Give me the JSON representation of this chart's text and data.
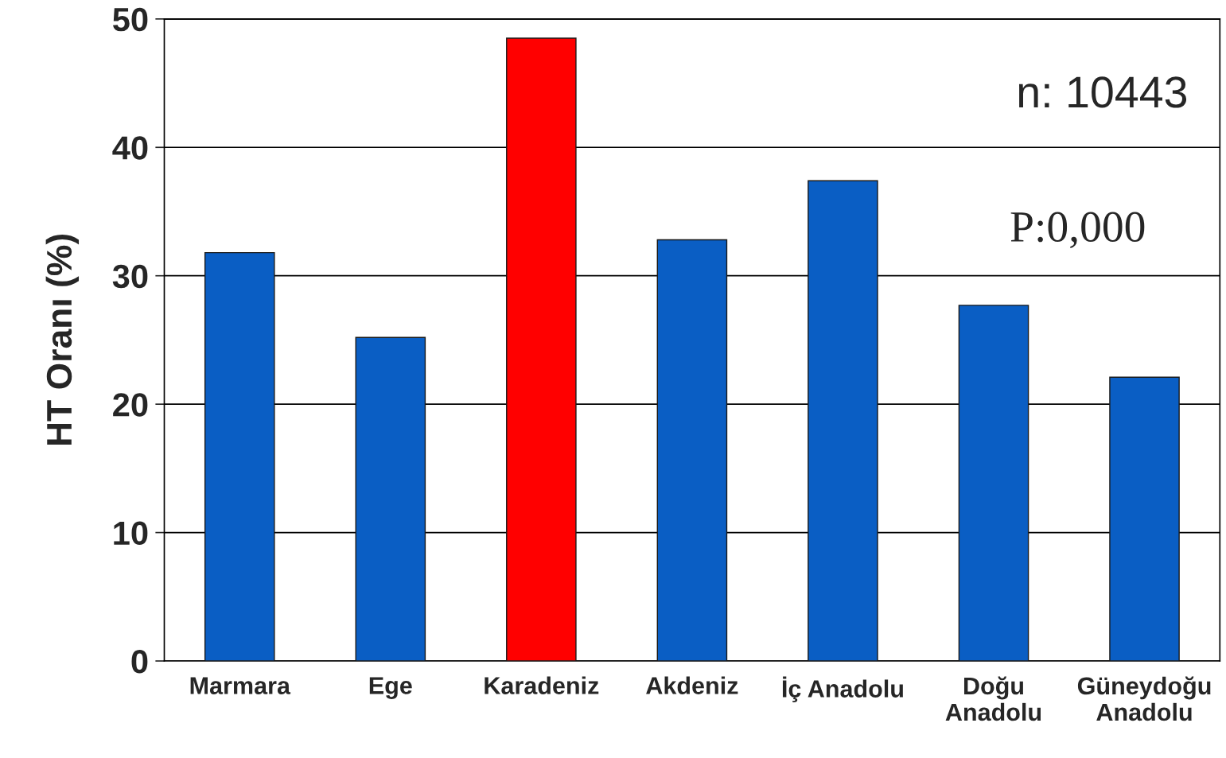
{
  "chart_data": {
    "type": "bar",
    "ylabel": "HT Oranı (%)",
    "categories": [
      "Marmara",
      "Ege",
      "Karadeniz",
      "Akdeniz",
      "İç Anadolu",
      "Doğu\nAnadolu",
      "Güneydoğu\nAnadolu"
    ],
    "values": [
      31.8,
      25.2,
      48.5,
      32.8,
      37.4,
      27.7,
      22.1
    ],
    "colors": [
      "#0a5ec4",
      "#0a5ec4",
      "#ff0000",
      "#0a5ec4",
      "#0a5ec4",
      "#0a5ec4",
      "#0a5ec4"
    ],
    "ylim": [
      0,
      50
    ],
    "yticks": [
      0,
      10,
      20,
      30,
      40,
      50
    ],
    "grid": "y",
    "annotations": [
      "n: 10443",
      "P:0,000"
    ]
  }
}
